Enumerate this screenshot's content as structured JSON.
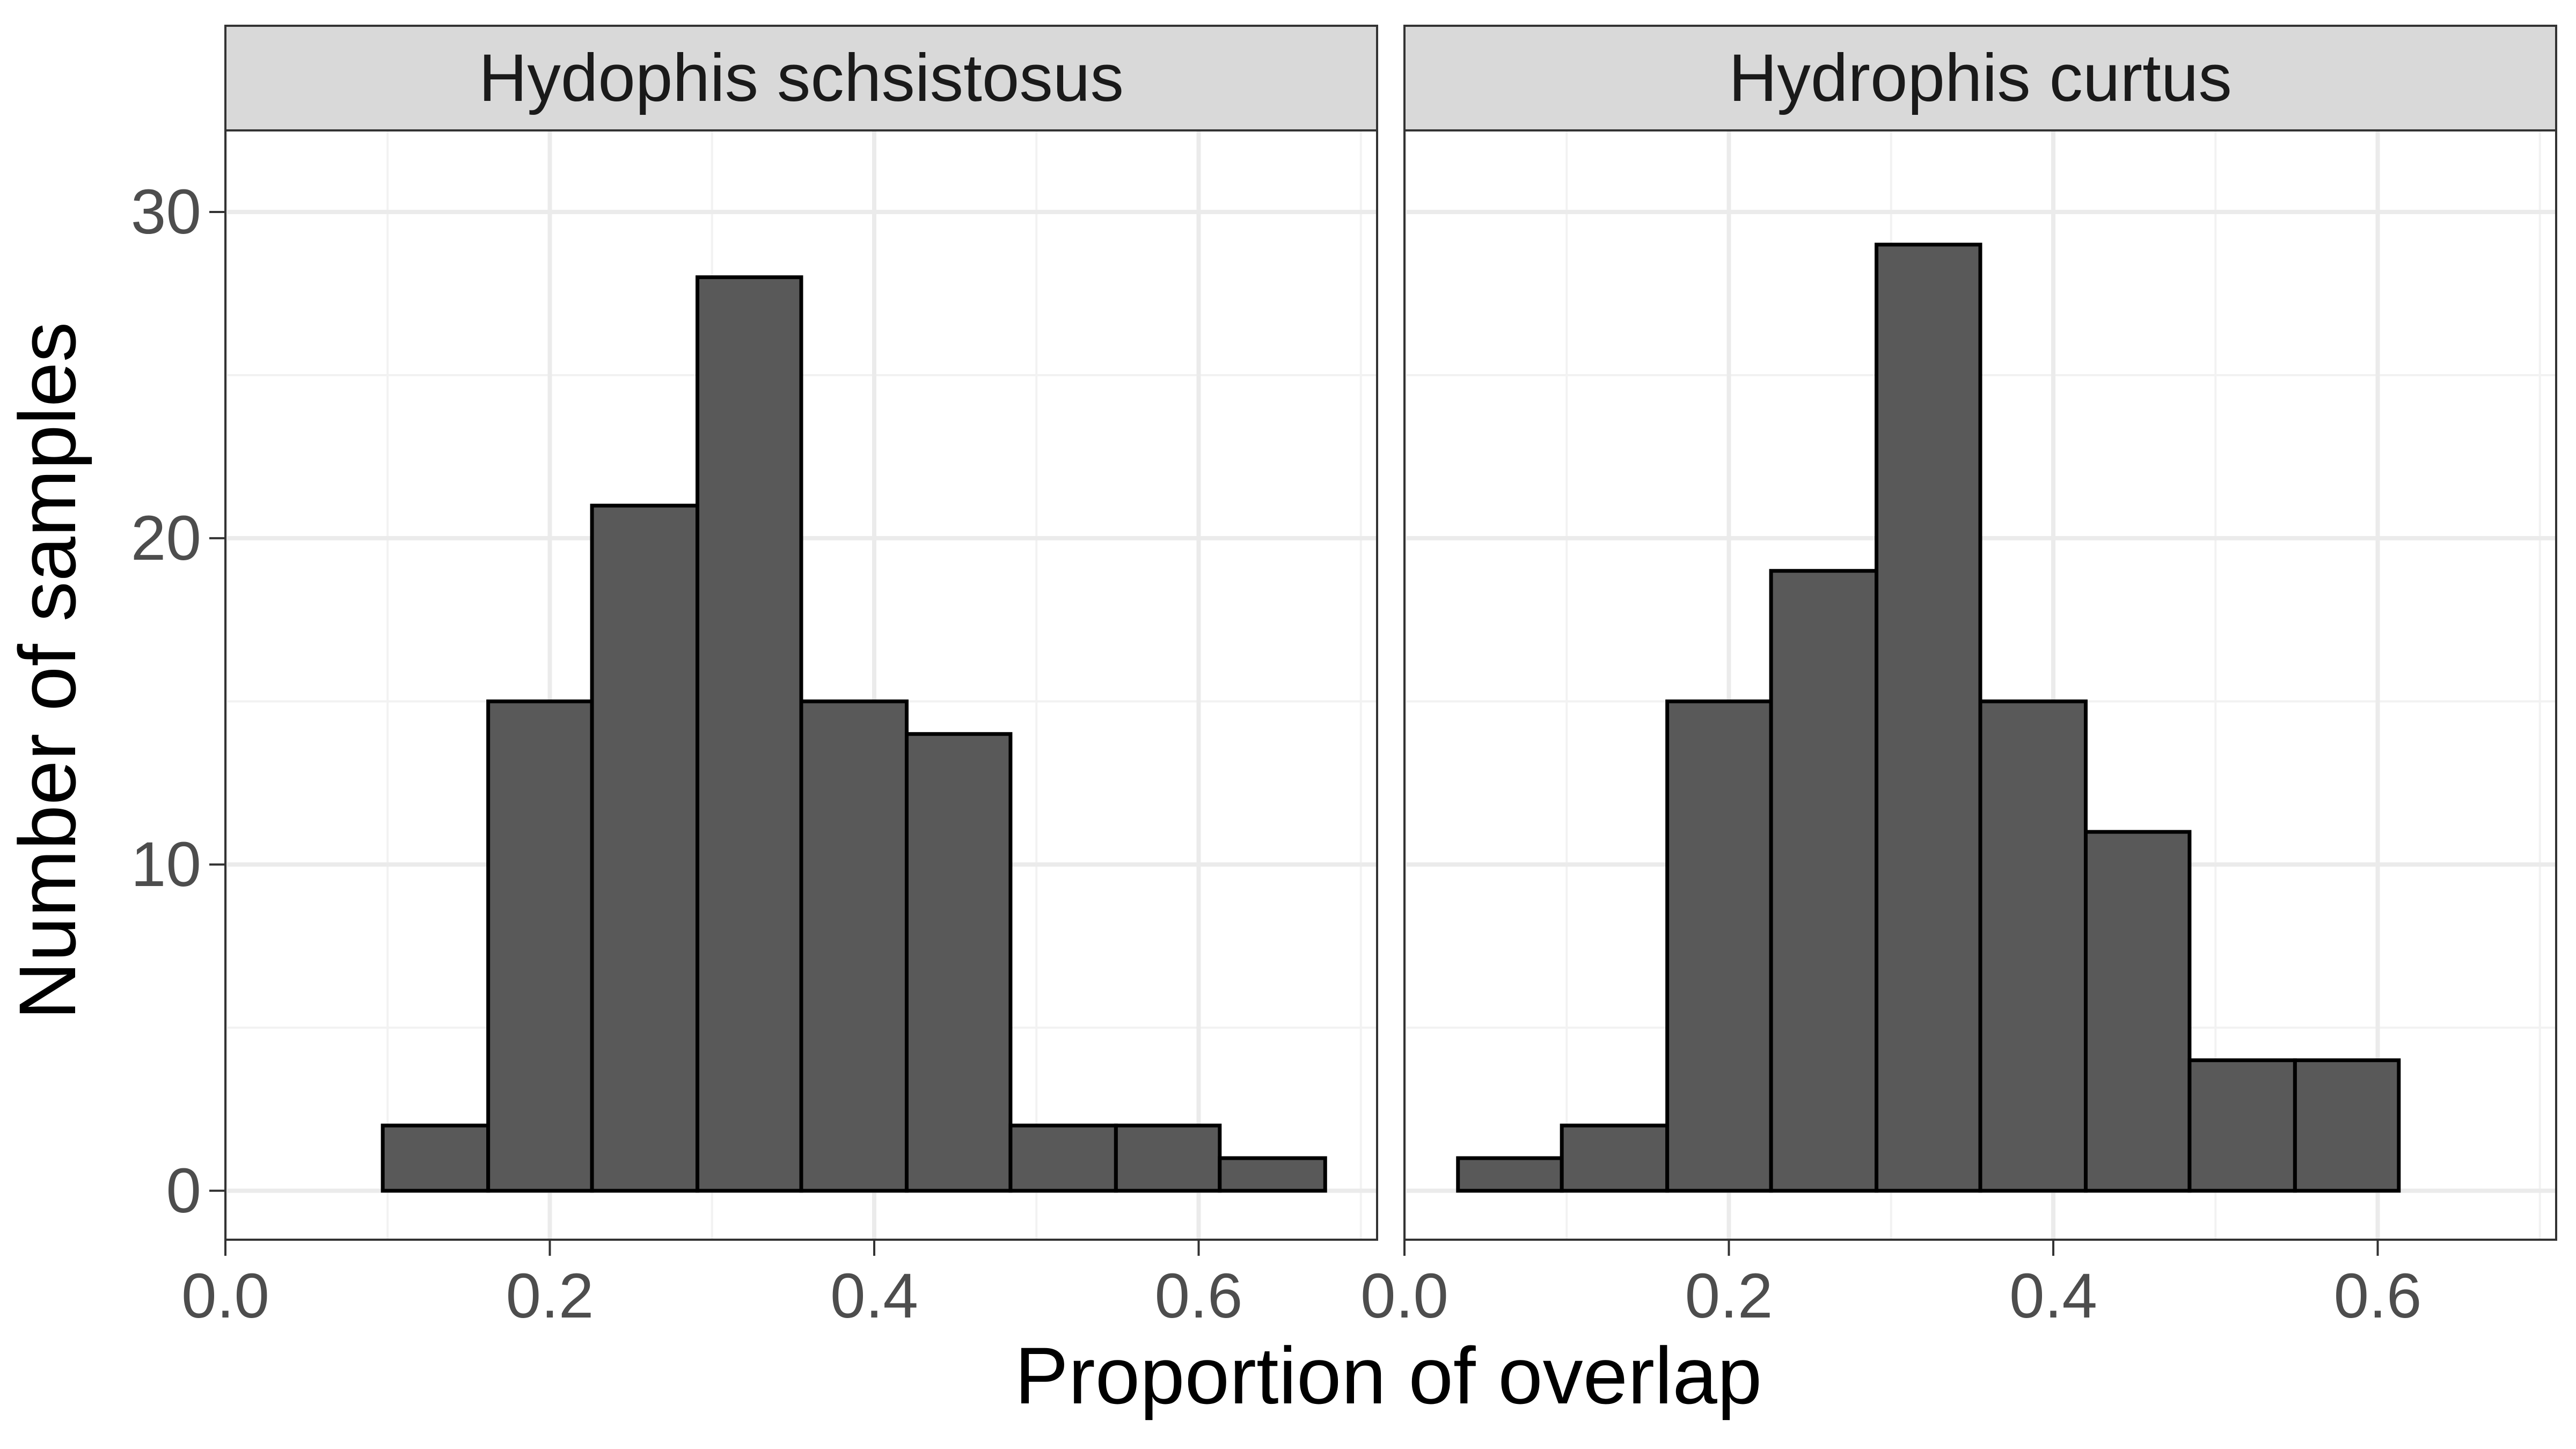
{
  "chart_data": {
    "type": "bar",
    "subtype": "histogram",
    "xlabel": "Proportion of overlap",
    "ylabel": "Number of samples",
    "xlim": [
      0.0,
      0.71
    ],
    "ylim": [
      -1.5,
      32.5
    ],
    "x_ticks": [
      "0.0",
      "0.2",
      "0.4",
      "0.6"
    ],
    "y_ticks": [
      "0",
      "10",
      "20",
      "30"
    ],
    "grid": true,
    "bar_fill": "#595959",
    "bar_stroke": "#000000",
    "panel_strip_fill": "#d9d9d9",
    "panels": [
      {
        "name": "Hydophis schsistosus",
        "bin_edges": [
          0.033,
          0.097,
          0.162,
          0.226,
          0.291,
          0.355,
          0.42,
          0.484,
          0.549,
          0.613,
          0.678
        ],
        "counts": [
          0,
          2,
          15,
          21,
          28,
          15,
          14,
          2,
          2,
          1
        ]
      },
      {
        "name": "Hydrophis curtus",
        "bin_edges": [
          0.033,
          0.097,
          0.162,
          0.226,
          0.291,
          0.355,
          0.42,
          0.484,
          0.549,
          0.613,
          0.678
        ],
        "counts": [
          1,
          2,
          15,
          19,
          29,
          15,
          11,
          4,
          4,
          0
        ]
      }
    ]
  }
}
